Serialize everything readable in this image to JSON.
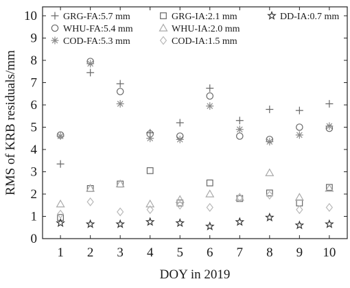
{
  "chart_data": {
    "type": "scatter",
    "xlabel": "DOY in 2019",
    "ylabel": "RMS of  KRB residuals/mm",
    "xlim": [
      0.4,
      10.6
    ],
    "ylim": [
      0,
      10.4
    ],
    "x_ticks": [
      1,
      2,
      3,
      4,
      5,
      6,
      7,
      8,
      9,
      10
    ],
    "y_ticks": [
      0,
      1,
      2,
      3,
      4,
      5,
      6,
      7,
      8,
      9,
      10
    ],
    "grid": false,
    "legend_position": "top",
    "x": [
      1,
      2,
      3,
      4,
      5,
      6,
      7,
      8,
      9,
      10
    ],
    "series": [
      {
        "name": "GRG-FA:5.7 mm",
        "marker": "plus",
        "color": "#666666",
        "values": [
          3.35,
          7.45,
          6.95,
          4.75,
          5.2,
          6.75,
          5.3,
          5.8,
          5.75,
          6.05
        ]
      },
      {
        "name": "WHU-FA:5.4 mm",
        "marker": "circle",
        "color": "#666666",
        "values": [
          4.65,
          7.95,
          6.6,
          4.7,
          4.6,
          6.4,
          4.6,
          4.45,
          5.0,
          4.95
        ]
      },
      {
        "name": "COD-FA:5.3 mm",
        "marker": "asterisk",
        "color": "#8a8a8a",
        "values": [
          4.6,
          7.85,
          6.05,
          4.5,
          4.45,
          5.95,
          4.9,
          4.35,
          4.65,
          5.05
        ]
      },
      {
        "name": "GRG-IA:2.1 mm",
        "marker": "square",
        "color": "#666666",
        "values": [
          0.95,
          2.25,
          2.45,
          3.05,
          1.6,
          2.5,
          1.8,
          2.05,
          1.6,
          2.3
        ]
      },
      {
        "name": "WHU-IA:2.0 mm",
        "marker": "triangle",
        "color": "#a8a8a8",
        "values": [
          1.55,
          2.25,
          2.45,
          1.55,
          1.75,
          2.0,
          1.85,
          2.95,
          1.85,
          2.25
        ]
      },
      {
        "name": "COD-IA:1.5 mm",
        "marker": "diamond",
        "color": "#b8b8b8",
        "values": [
          1.1,
          1.65,
          1.2,
          1.3,
          1.5,
          1.4,
          1.85,
          1.95,
          1.3,
          1.4
        ]
      },
      {
        "name": "DD-IA:0.7 mm",
        "marker": "star",
        "color": "#333333",
        "values": [
          0.7,
          0.65,
          0.65,
          0.75,
          0.7,
          0.55,
          0.75,
          0.95,
          0.6,
          0.65
        ]
      }
    ]
  }
}
